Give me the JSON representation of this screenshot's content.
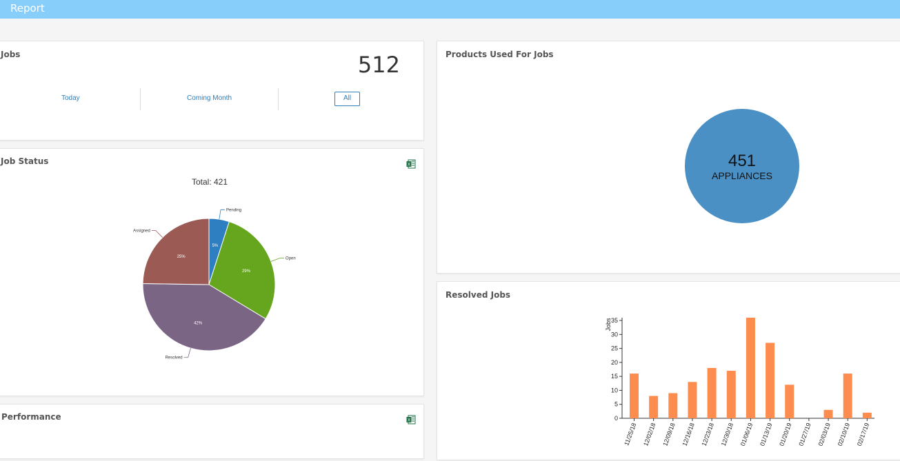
{
  "header": {
    "title": "Report"
  },
  "jobs_panel": {
    "title": "Jobs",
    "count": "512",
    "filters": {
      "today": "Today",
      "coming_month": "Coming Month",
      "all": "All"
    }
  },
  "job_status_panel": {
    "title": "Job Status",
    "total_label": "Total: 421"
  },
  "performance_panel": {
    "title": "Performance"
  },
  "products_panel": {
    "title": "Products Used For Jobs",
    "bubble_value": "451",
    "bubble_label": "APPLIANCES"
  },
  "resolved_panel": {
    "title": "Resolved Jobs"
  },
  "colors": {
    "header": "#87cefa",
    "bar": "#fd8d4f",
    "bubble": "#4a90c4"
  },
  "chart_data": [
    {
      "type": "pie",
      "title": "Total: 421",
      "categories": [
        "Pending",
        "Open",
        "Resolved",
        "Assigned"
      ],
      "values": [
        5,
        29,
        42,
        25
      ],
      "value_labels": [
        "5%",
        "29%",
        "42%",
        "25%"
      ],
      "colors": [
        "#2d7fc1",
        "#66a61e",
        "#7b6585",
        "#9c5a55"
      ]
    },
    {
      "type": "bar",
      "title": "Resolved Jobs",
      "ylabel": "Jobs",
      "xlabel": "",
      "ylim": [
        0,
        36
      ],
      "yticks": [
        0,
        5,
        10,
        15,
        20,
        25,
        30,
        35
      ],
      "categories": [
        "11/25/18",
        "12/02/18",
        "12/09/18",
        "12/16/18",
        "12/23/18",
        "12/30/18",
        "01/06/19",
        "01/13/19",
        "01/20/19",
        "01/27/19",
        "02/03/19",
        "02/10/19",
        "02/17/19"
      ],
      "values": [
        16,
        8,
        9,
        13,
        18,
        17,
        36,
        27,
        12,
        0,
        3,
        16,
        2
      ]
    }
  ]
}
